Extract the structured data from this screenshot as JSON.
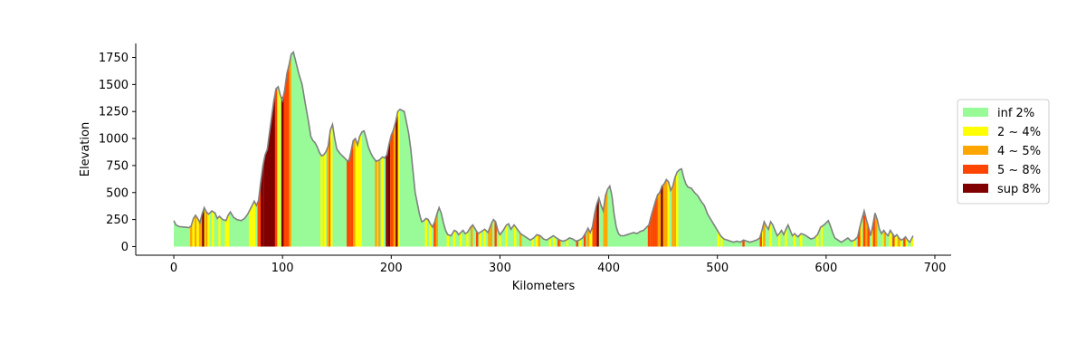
{
  "chart_data": {
    "type": "area",
    "xlabel": "Kilometers",
    "ylabel": "Elevation",
    "xlim": [
      -35,
      715
    ],
    "ylim": [
      -80,
      1880
    ],
    "x_ticks": [
      0,
      100,
      200,
      300,
      400,
      500,
      600,
      700
    ],
    "y_ticks": [
      0,
      250,
      500,
      750,
      1000,
      1250,
      1500,
      1750
    ],
    "x_tick_labels": [
      "0",
      "100",
      "200",
      "300",
      "400",
      "500",
      "600",
      "700"
    ],
    "y_tick_labels": [
      "0",
      "250",
      "500",
      "750",
      "1000",
      "1250",
      "1500",
      "1750"
    ],
    "profile_line_color": "#808080",
    "legend": {
      "placement": "right",
      "entries": [
        {
          "label": "inf 2%",
          "color": "#98fb98"
        },
        {
          "label": "2 ~ 4%",
          "color": "#ffff00"
        },
        {
          "label": "4 ~ 5%",
          "color": "#ffa500"
        },
        {
          "label": "5 ~ 8%",
          "color": "#ff4500"
        },
        {
          "label": "sup 8%",
          "color": "#800000"
        }
      ]
    },
    "profile": [
      [
        0,
        240
      ],
      [
        2,
        200
      ],
      [
        5,
        185
      ],
      [
        10,
        180
      ],
      [
        14,
        175
      ],
      [
        16,
        190
      ],
      [
        18,
        260
      ],
      [
        20,
        290
      ],
      [
        22,
        260
      ],
      [
        24,
        220
      ],
      [
        26,
        300
      ],
      [
        28,
        360
      ],
      [
        30,
        320
      ],
      [
        32,
        300
      ],
      [
        35,
        330
      ],
      [
        38,
        310
      ],
      [
        40,
        260
      ],
      [
        42,
        280
      ],
      [
        45,
        250
      ],
      [
        48,
        240
      ],
      [
        50,
        290
      ],
      [
        52,
        320
      ],
      [
        55,
        270
      ],
      [
        58,
        250
      ],
      [
        62,
        240
      ],
      [
        65,
        260
      ],
      [
        68,
        300
      ],
      [
        70,
        340
      ],
      [
        72,
        380
      ],
      [
        74,
        420
      ],
      [
        76,
        380
      ],
      [
        78,
        430
      ],
      [
        80,
        600
      ],
      [
        82,
        750
      ],
      [
        84,
        850
      ],
      [
        86,
        900
      ],
      [
        88,
        1050
      ],
      [
        90,
        1200
      ],
      [
        92,
        1350
      ],
      [
        94,
        1460
      ],
      [
        96,
        1480
      ],
      [
        98,
        1400
      ],
      [
        100,
        1350
      ],
      [
        102,
        1450
      ],
      [
        104,
        1600
      ],
      [
        106,
        1680
      ],
      [
        108,
        1780
      ],
      [
        110,
        1800
      ],
      [
        112,
        1720
      ],
      [
        115,
        1600
      ],
      [
        118,
        1500
      ],
      [
        121,
        1320
      ],
      [
        124,
        1150
      ],
      [
        126,
        1020
      ],
      [
        128,
        980
      ],
      [
        130,
        960
      ],
      [
        132,
        920
      ],
      [
        134,
        870
      ],
      [
        136,
        840
      ],
      [
        138,
        850
      ],
      [
        140,
        880
      ],
      [
        142,
        930
      ],
      [
        144,
        1080
      ],
      [
        146,
        1130
      ],
      [
        148,
        1000
      ],
      [
        150,
        900
      ],
      [
        153,
        860
      ],
      [
        156,
        830
      ],
      [
        159,
        800
      ],
      [
        161,
        790
      ],
      [
        163,
        880
      ],
      [
        165,
        980
      ],
      [
        167,
        1000
      ],
      [
        169,
        940
      ],
      [
        171,
        1020
      ],
      [
        173,
        1060
      ],
      [
        175,
        1070
      ],
      [
        177,
        1000
      ],
      [
        179,
        920
      ],
      [
        181,
        870
      ],
      [
        183,
        830
      ],
      [
        186,
        790
      ],
      [
        189,
        800
      ],
      [
        192,
        830
      ],
      [
        194,
        820
      ],
      [
        196,
        850
      ],
      [
        198,
        950
      ],
      [
        200,
        1030
      ],
      [
        202,
        1080
      ],
      [
        204,
        1150
      ],
      [
        206,
        1250
      ],
      [
        208,
        1270
      ],
      [
        210,
        1260
      ],
      [
        212,
        1250
      ],
      [
        214,
        1150
      ],
      [
        216,
        1050
      ],
      [
        218,
        900
      ],
      [
        220,
        700
      ],
      [
        222,
        500
      ],
      [
        224,
        400
      ],
      [
        226,
        300
      ],
      [
        228,
        230
      ],
      [
        230,
        240
      ],
      [
        232,
        260
      ],
      [
        234,
        250
      ],
      [
        236,
        210
      ],
      [
        238,
        180
      ],
      [
        240,
        230
      ],
      [
        242,
        300
      ],
      [
        244,
        360
      ],
      [
        246,
        310
      ],
      [
        248,
        220
      ],
      [
        250,
        150
      ],
      [
        252,
        110
      ],
      [
        255,
        100
      ],
      [
        258,
        150
      ],
      [
        260,
        140
      ],
      [
        262,
        110
      ],
      [
        264,
        130
      ],
      [
        266,
        150
      ],
      [
        268,
        120
      ],
      [
        270,
        130
      ],
      [
        273,
        180
      ],
      [
        275,
        200
      ],
      [
        278,
        150
      ],
      [
        280,
        120
      ],
      [
        283,
        140
      ],
      [
        286,
        160
      ],
      [
        289,
        130
      ],
      [
        292,
        210
      ],
      [
        294,
        250
      ],
      [
        296,
        230
      ],
      [
        298,
        150
      ],
      [
        300,
        110
      ],
      [
        303,
        150
      ],
      [
        306,
        200
      ],
      [
        308,
        210
      ],
      [
        310,
        160
      ],
      [
        313,
        200
      ],
      [
        316,
        160
      ],
      [
        319,
        120
      ],
      [
        322,
        100
      ],
      [
        325,
        80
      ],
      [
        328,
        60
      ],
      [
        331,
        80
      ],
      [
        334,
        110
      ],
      [
        337,
        100
      ],
      [
        340,
        70
      ],
      [
        343,
        60
      ],
      [
        346,
        80
      ],
      [
        349,
        100
      ],
      [
        352,
        80
      ],
      [
        355,
        60
      ],
      [
        358,
        50
      ],
      [
        361,
        60
      ],
      [
        364,
        80
      ],
      [
        367,
        70
      ],
      [
        370,
        50
      ],
      [
        373,
        60
      ],
      [
        376,
        80
      ],
      [
        379,
        130
      ],
      [
        381,
        170
      ],
      [
        383,
        130
      ],
      [
        385,
        180
      ],
      [
        387,
        300
      ],
      [
        389,
        390
      ],
      [
        391,
        450
      ],
      [
        393,
        380
      ],
      [
        395,
        330
      ],
      [
        397,
        470
      ],
      [
        399,
        530
      ],
      [
        401,
        560
      ],
      [
        403,
        470
      ],
      [
        405,
        300
      ],
      [
        407,
        180
      ],
      [
        409,
        120
      ],
      [
        411,
        100
      ],
      [
        414,
        100
      ],
      [
        417,
        110
      ],
      [
        420,
        120
      ],
      [
        423,
        130
      ],
      [
        426,
        120
      ],
      [
        429,
        140
      ],
      [
        432,
        150
      ],
      [
        435,
        180
      ],
      [
        437,
        200
      ],
      [
        439,
        280
      ],
      [
        441,
        350
      ],
      [
        443,
        420
      ],
      [
        445,
        480
      ],
      [
        447,
        500
      ],
      [
        449,
        560
      ],
      [
        451,
        580
      ],
      [
        453,
        620
      ],
      [
        455,
        600
      ],
      [
        457,
        520
      ],
      [
        459,
        560
      ],
      [
        461,
        640
      ],
      [
        463,
        690
      ],
      [
        465,
        710
      ],
      [
        467,
        720
      ],
      [
        469,
        640
      ],
      [
        471,
        580
      ],
      [
        473,
        550
      ],
      [
        476,
        540
      ],
      [
        479,
        500
      ],
      [
        482,
        470
      ],
      [
        485,
        420
      ],
      [
        488,
        380
      ],
      [
        491,
        300
      ],
      [
        494,
        250
      ],
      [
        497,
        200
      ],
      [
        500,
        150
      ],
      [
        503,
        100
      ],
      [
        506,
        70
      ],
      [
        509,
        60
      ],
      [
        512,
        50
      ],
      [
        515,
        40
      ],
      [
        518,
        50
      ],
      [
        521,
        40
      ],
      [
        524,
        60
      ],
      [
        527,
        50
      ],
      [
        530,
        40
      ],
      [
        533,
        50
      ],
      [
        536,
        60
      ],
      [
        539,
        80
      ],
      [
        541,
        150
      ],
      [
        543,
        230
      ],
      [
        545,
        190
      ],
      [
        547,
        160
      ],
      [
        549,
        230
      ],
      [
        551,
        200
      ],
      [
        553,
        150
      ],
      [
        555,
        100
      ],
      [
        557,
        120
      ],
      [
        559,
        150
      ],
      [
        561,
        110
      ],
      [
        563,
        160
      ],
      [
        565,
        200
      ],
      [
        567,
        150
      ],
      [
        569,
        100
      ],
      [
        571,
        120
      ],
      [
        574,
        90
      ],
      [
        577,
        120
      ],
      [
        580,
        110
      ],
      [
        583,
        90
      ],
      [
        586,
        70
      ],
      [
        589,
        80
      ],
      [
        592,
        110
      ],
      [
        595,
        180
      ],
      [
        598,
        200
      ],
      [
        600,
        220
      ],
      [
        602,
        240
      ],
      [
        604,
        190
      ],
      [
        606,
        130
      ],
      [
        608,
        80
      ],
      [
        611,
        60
      ],
      [
        614,
        40
      ],
      [
        617,
        60
      ],
      [
        620,
        80
      ],
      [
        623,
        50
      ],
      [
        626,
        60
      ],
      [
        629,
        90
      ],
      [
        631,
        180
      ],
      [
        633,
        260
      ],
      [
        635,
        330
      ],
      [
        637,
        250
      ],
      [
        639,
        180
      ],
      [
        641,
        100
      ],
      [
        643,
        200
      ],
      [
        645,
        310
      ],
      [
        647,
        250
      ],
      [
        649,
        160
      ],
      [
        651,
        120
      ],
      [
        653,
        150
      ],
      [
        655,
        120
      ],
      [
        657,
        100
      ],
      [
        659,
        150
      ],
      [
        661,
        120
      ],
      [
        663,
        90
      ],
      [
        665,
        110
      ],
      [
        667,
        80
      ],
      [
        669,
        60
      ],
      [
        671,
        70
      ],
      [
        673,
        90
      ],
      [
        675,
        60
      ],
      [
        677,
        40
      ],
      [
        679,
        80
      ],
      [
        680,
        100
      ]
    ],
    "colored_segments": [
      {
        "x": [
          16,
          18,
          20,
          22,
          24,
          26,
          28,
          30
        ],
        "grade": "4 ~ 5%"
      },
      {
        "x": [
          18,
          22,
          28,
          32
        ],
        "grade": "2 ~ 4%"
      },
      {
        "x": [
          27
        ],
        "grade": "sup 8%"
      },
      {
        "x": [
          36,
          42,
          48,
          50,
          70,
          72,
          74
        ],
        "grade": "2 ~ 4%"
      },
      {
        "x": [
          78,
          80
        ],
        "grade": "5 ~ 8%"
      },
      {
        "x": [
          81,
          82,
          84,
          85,
          86,
          87,
          88,
          89,
          90,
          91,
          92,
          93
        ],
        "grade": "sup 8%"
      },
      {
        "x": [
          94
        ],
        "grade": "5 ~ 8%"
      },
      {
        "x": [
          97
        ],
        "grade": "2 ~ 4%"
      },
      {
        "x": [
          100,
          101
        ],
        "grade": "sup 8%"
      },
      {
        "x": [
          102,
          103,
          104,
          105,
          106
        ],
        "grade": "5 ~ 8%"
      },
      {
        "x": [
          107
        ],
        "grade": "4 ~ 5%"
      },
      {
        "x": [
          136,
          139
        ],
        "grade": "2 ~ 4%"
      },
      {
        "x": [
          142,
          143
        ],
        "grade": "4 ~ 5%"
      },
      {
        "x": [
          144
        ],
        "grade": "5 ~ 8%"
      },
      {
        "x": [
          145
        ],
        "grade": "2 ~ 4%"
      },
      {
        "x": [
          160,
          162,
          164
        ],
        "grade": "5 ~ 8%"
      },
      {
        "x": [
          166
        ],
        "grade": "4 ~ 5%"
      },
      {
        "x": [
          168,
          170,
          172
        ],
        "grade": "2 ~ 4%"
      },
      {
        "x": [
          186,
          189
        ],
        "grade": "4 ~ 5%"
      },
      {
        "x": [
          192
        ],
        "grade": "2 ~ 4%"
      },
      {
        "x": [
          196,
          198,
          205
        ],
        "grade": "sup 8%"
      },
      {
        "x": [
          200,
          202
        ],
        "grade": "5 ~ 8%"
      },
      {
        "x": [
          203
        ],
        "grade": "4 ~ 5%"
      },
      {
        "x": [
          207
        ],
        "grade": "2 ~ 4%"
      },
      {
        "x": [
          232,
          236
        ],
        "grade": "2 ~ 4%"
      },
      {
        "x": [
          240
        ],
        "grade": "5 ~ 8%"
      },
      {
        "x": [
          242
        ],
        "grade": "4 ~ 5%"
      },
      {
        "x": [
          252,
          258,
          264,
          270,
          282,
          286,
          300,
          306,
          314,
          330,
          334,
          346,
          350,
          362,
          374,
          384,
          398,
          541,
          549,
          557,
          563,
          571,
          577,
          592,
          596,
          626,
          632,
          643,
          653,
          659,
          664,
          669,
          674,
          679
        ],
        "grade": "2 ~ 4%"
      },
      {
        "x": [
          274,
          290,
          292,
          319,
          336,
          355,
          381,
          543,
          631,
          637,
          646,
          654,
          667
        ],
        "grade": "4 ~ 5%"
      },
      {
        "x": [
          279,
          296,
          354,
          371,
          378,
          386,
          388,
          524,
          540,
          635,
          639,
          644,
          672
        ],
        "grade": "5 ~ 8%"
      },
      {
        "x": [
          390
        ],
        "grade": "sup 8%"
      },
      {
        "x": [
          396,
          398
        ],
        "grade": "4 ~ 5%"
      },
      {
        "x": [
          437,
          439,
          441,
          443,
          445
        ],
        "grade": "5 ~ 8%"
      },
      {
        "x": [
          446,
          448
        ],
        "grade": "4 ~ 5%"
      },
      {
        "x": [
          449
        ],
        "grade": "sup 8%"
      },
      {
        "x": [
          451,
          453,
          459,
          461
        ],
        "grade": "4 ~ 5%"
      },
      {
        "x": [
          455,
          463
        ],
        "grade": "2 ~ 4%"
      },
      {
        "x": [
          501,
          504
        ],
        "grade": "2 ~ 4%"
      },
      {
        "x": [
          630,
          662
        ],
        "grade": "5 ~ 8%"
      }
    ]
  }
}
